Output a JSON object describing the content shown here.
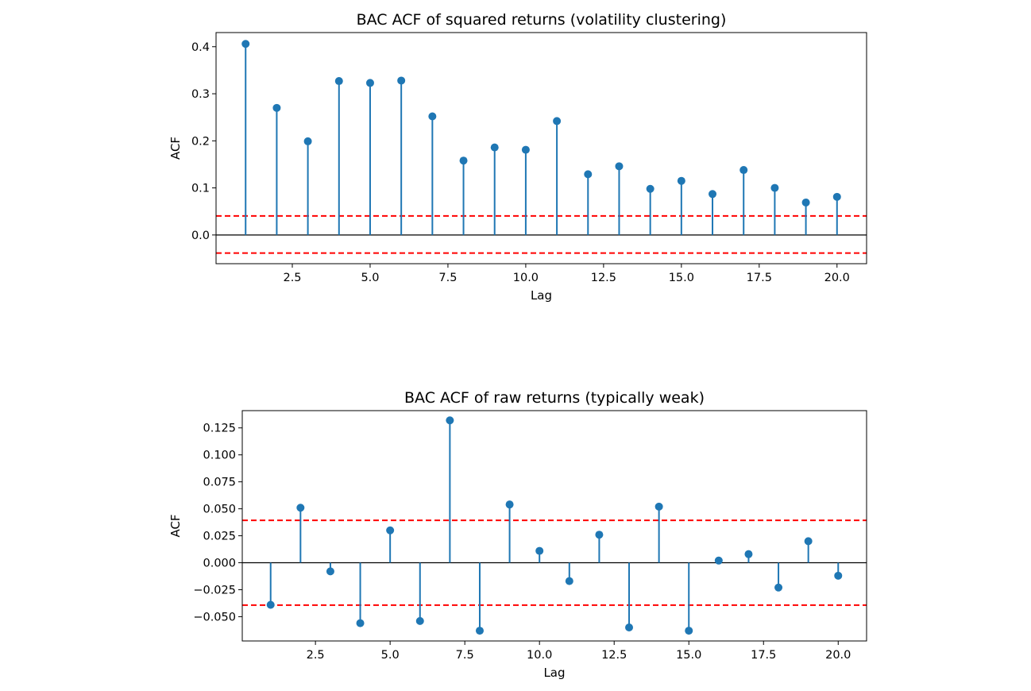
{
  "chart_data": [
    {
      "type": "stem",
      "title": "BAC ACF of squared returns (volatility clustering)",
      "xlabel": "Lag",
      "ylabel": "ACF",
      "xlim": [
        0.05,
        20.95
      ],
      "ylim": [
        -0.061,
        0.43
      ],
      "xticks": [
        2.5,
        5.0,
        7.5,
        10.0,
        12.5,
        15.0,
        17.5,
        20.0
      ],
      "xtick_labels": [
        "2.5",
        "5.0",
        "7.5",
        "10.0",
        "12.5",
        "15.0",
        "17.5",
        "20.0"
      ],
      "yticks": [
        0.0,
        0.1,
        0.2,
        0.3,
        0.4
      ],
      "ytick_labels": [
        "0.0",
        "0.1",
        "0.2",
        "0.3",
        "0.4"
      ],
      "x": [
        1,
        2,
        3,
        4,
        5,
        6,
        7,
        8,
        9,
        10,
        11,
        12,
        13,
        14,
        15,
        16,
        17,
        18,
        19,
        20
      ],
      "values": [
        0.406,
        0.27,
        0.199,
        0.327,
        0.323,
        0.328,
        0.252,
        0.158,
        0.186,
        0.181,
        0.242,
        0.129,
        0.146,
        0.098,
        0.115,
        0.087,
        0.138,
        0.1,
        0.069,
        0.081
      ],
      "confidence_band": [
        0.0405,
        -0.0385
      ],
      "zero_line": 0,
      "colors": {
        "stem": "#1f77b4",
        "band": "#ff0000",
        "baseline": "#000000"
      },
      "grid": false
    },
    {
      "type": "stem",
      "title": "BAC ACF of raw returns (typically weak)",
      "xlabel": "Lag",
      "ylabel": "ACF",
      "xlim": [
        0.05,
        20.95
      ],
      "ylim": [
        -0.0725,
        0.141
      ],
      "xticks": [
        2.5,
        5.0,
        7.5,
        10.0,
        12.5,
        15.0,
        17.5,
        20.0
      ],
      "xtick_labels": [
        "2.5",
        "5.0",
        "7.5",
        "10.0",
        "12.5",
        "15.0",
        "17.5",
        "20.0"
      ],
      "yticks": [
        -0.05,
        -0.025,
        0.0,
        0.025,
        0.05,
        0.075,
        0.1,
        0.125
      ],
      "ytick_labels": [
        "−0.050",
        "−0.025",
        "0.000",
        "0.025",
        "0.050",
        "0.075",
        "0.100",
        "0.125"
      ],
      "x": [
        1,
        2,
        3,
        4,
        5,
        6,
        7,
        8,
        9,
        10,
        11,
        12,
        13,
        14,
        15,
        16,
        17,
        18,
        19,
        20
      ],
      "values": [
        -0.039,
        0.051,
        -0.008,
        -0.056,
        0.03,
        -0.054,
        0.132,
        -0.063,
        0.054,
        0.011,
        -0.017,
        0.026,
        -0.06,
        0.052,
        -0.063,
        0.002,
        0.008,
        -0.023,
        0.02,
        -0.012
      ],
      "confidence_band": [
        0.0393,
        -0.0393
      ],
      "zero_line": 0,
      "colors": {
        "stem": "#1f77b4",
        "band": "#ff0000",
        "baseline": "#000000"
      },
      "grid": false
    }
  ]
}
